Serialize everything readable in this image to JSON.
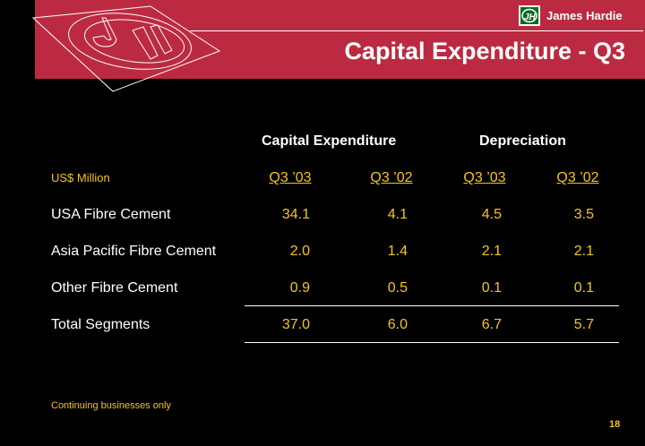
{
  "header": {
    "brand": "James Hardie",
    "title": "Capital Expenditure - Q3"
  },
  "table": {
    "group_headers": [
      "Capital Expenditure",
      "Depreciation"
    ],
    "unit_label": "US$ Million",
    "columns": [
      "Q3 ’03",
      "Q3 ’02",
      "Q3 ’03",
      "Q3 ’02"
    ],
    "rows": [
      {
        "label": "USA Fibre Cement",
        "values": [
          "34.1",
          "4.1",
          "4.5",
          "3.5"
        ]
      },
      {
        "label": "Asia Pacific Fibre Cement",
        "values": [
          "2.0",
          "1.4",
          "2.1",
          "2.1"
        ]
      },
      {
        "label": "Other Fibre Cement",
        "values": [
          "0.9",
          "0.5",
          "0.1",
          "0.1"
        ]
      },
      {
        "label": "Total Segments",
        "values": [
          "37.0",
          "6.0",
          "6.7",
          "5.7"
        ]
      }
    ]
  },
  "footnote": "Continuing businesses only",
  "page_number": "18",
  "colors": {
    "band": "#bc2a41",
    "accent": "#f5c518",
    "logo_green": "#0b6b1f"
  }
}
